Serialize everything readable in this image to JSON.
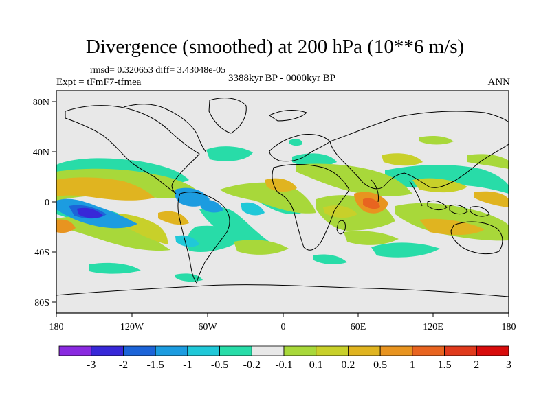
{
  "title": "Divergence (smoothed) at 200 hPa (10**6 m/s)",
  "stats": "rmsd= 0.320653 diff= 3.43048e-05",
  "expt": "Expt = tFmF7-tfmea",
  "period": "3388kyr BP - 0000kyr BP",
  "season": "ANN",
  "lat_labels": [
    "80N",
    "40N",
    "0",
    "40S",
    "80S"
  ],
  "lon_labels": [
    "180",
    "120W",
    "60W",
    "0",
    "60E",
    "120E",
    "180"
  ],
  "colorbar": {
    "colors": [
      "#8a2ae0",
      "#3828d8",
      "#1c64d8",
      "#1c9ce0",
      "#20c8d8",
      "#28dca8",
      "#e8e8e8",
      "#a8d83a",
      "#c8d02a",
      "#e0b420",
      "#e89420",
      "#e86420",
      "#e03a1c",
      "#d80c0c"
    ],
    "labels": [
      "-3",
      "-2",
      "-1.5",
      "-1",
      "-0.5",
      "-0.2",
      "-0.1",
      "0.1",
      "0.2",
      "0.5",
      "1",
      "1.5",
      "2",
      "3"
    ]
  }
}
